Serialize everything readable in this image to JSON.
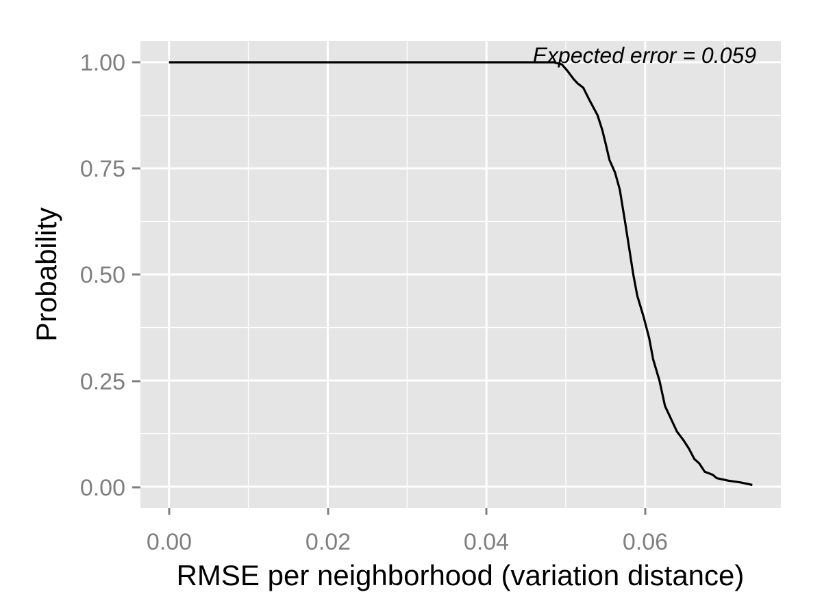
{
  "chart_data": {
    "type": "line",
    "xlabel": "RMSE per neighborhood (variation distance)",
    "ylabel": "Probability",
    "xlim": [
      -0.0036,
      0.0771
    ],
    "ylim": [
      -0.05,
      1.05
    ],
    "x_ticks": [
      "0.00",
      "0.02",
      "0.04",
      "0.06"
    ],
    "y_ticks": [
      "0.00",
      "0.25",
      "0.50",
      "0.75",
      "1.00"
    ],
    "grid": true,
    "background": "#e5e5e5",
    "line_color": "#000000",
    "annotation": "Expected error = 0.059",
    "series": [
      {
        "x": [
          0.0,
          0.045,
          0.0485,
          0.0495,
          0.0502,
          0.051,
          0.0515,
          0.0522,
          0.053,
          0.054,
          0.0546,
          0.055,
          0.0555,
          0.0562,
          0.0568,
          0.0575,
          0.058,
          0.0585,
          0.059,
          0.0598,
          0.0605,
          0.061,
          0.0618,
          0.0625,
          0.063,
          0.0635,
          0.064,
          0.0648,
          0.0655,
          0.0662,
          0.0668,
          0.0675,
          0.0685,
          0.069,
          0.0705,
          0.072,
          0.0735
        ],
        "y": [
          1.0,
          1.0,
          1.0,
          0.995,
          0.98,
          0.96,
          0.95,
          0.94,
          0.91,
          0.875,
          0.84,
          0.81,
          0.77,
          0.74,
          0.7,
          0.62,
          0.56,
          0.5,
          0.45,
          0.4,
          0.35,
          0.3,
          0.25,
          0.19,
          0.17,
          0.15,
          0.13,
          0.11,
          0.09,
          0.065,
          0.055,
          0.035,
          0.028,
          0.02,
          0.014,
          0.01,
          0.004
        ]
      }
    ]
  }
}
